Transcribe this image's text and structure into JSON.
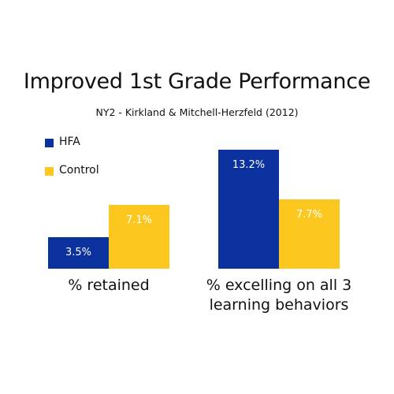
{
  "chart_data": {
    "type": "bar",
    "title": "Improved 1st Grade Performance",
    "subtitle": "NY2 - Kirkland & Mitchell-Herzfeld (2012)",
    "categories": [
      "% retained",
      "% excelling on all 3 learning behaviors"
    ],
    "series": [
      {
        "name": "HFA",
        "color": "#0b319e",
        "values": [
          3.5,
          13.2
        ],
        "value_labels": [
          "3.5%",
          "13.2%"
        ]
      },
      {
        "name": "Control",
        "color": "#fcc81f",
        "values": [
          7.1,
          7.7
        ],
        "value_labels": [
          "7.1%",
          "7.7%"
        ]
      }
    ],
    "legend": "top-left"
  }
}
